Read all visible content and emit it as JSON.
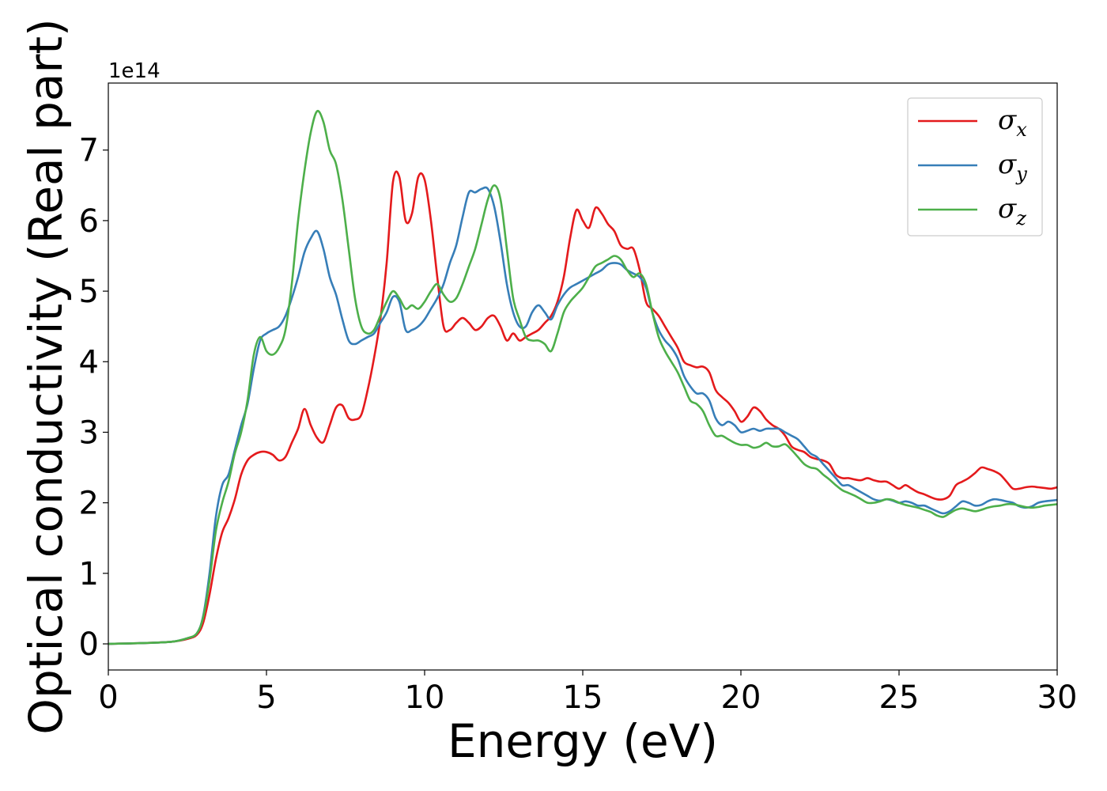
{
  "chart_data": {
    "type": "line",
    "title": "",
    "xlabel": "Energy (eV)",
    "ylabel": "Optical conductivity (Real part)",
    "y_offset_label": "1e14",
    "xlim": [
      0,
      30
    ],
    "ylim": [
      -0.37,
      7.95
    ],
    "y_scale_factor": 100000000000000.0,
    "xticks": [
      0,
      5,
      10,
      15,
      20,
      25,
      30
    ],
    "yticks": [
      0,
      1,
      2,
      3,
      4,
      5,
      6,
      7
    ],
    "grid": false,
    "legend_position": "top-right",
    "series": [
      {
        "name": "σ",
        "subscript": "x",
        "color": "#e41a1c",
        "x": [
          0,
          1,
          2,
          2.5,
          2.8,
          3.0,
          3.2,
          3.4,
          3.6,
          3.8,
          4.0,
          4.2,
          4.4,
          4.6,
          4.8,
          5.0,
          5.2,
          5.4,
          5.6,
          5.8,
          6.0,
          6.2,
          6.4,
          6.6,
          6.8,
          7.0,
          7.2,
          7.4,
          7.6,
          7.8,
          8.0,
          8.2,
          8.4,
          8.6,
          8.8,
          9.0,
          9.2,
          9.4,
          9.6,
          9.8,
          10.0,
          10.2,
          10.4,
          10.6,
          10.8,
          11.0,
          11.2,
          11.4,
          11.6,
          11.8,
          12.0,
          12.2,
          12.4,
          12.6,
          12.8,
          13.0,
          13.2,
          13.4,
          13.6,
          13.8,
          14.0,
          14.2,
          14.4,
          14.6,
          14.8,
          15.0,
          15.2,
          15.4,
          15.6,
          15.8,
          16.0,
          16.2,
          16.4,
          16.6,
          16.8,
          17.0,
          17.2,
          17.4,
          17.6,
          17.8,
          18.0,
          18.2,
          18.4,
          18.6,
          18.8,
          19.0,
          19.2,
          19.4,
          19.6,
          19.8,
          20.0,
          20.2,
          20.4,
          20.6,
          20.8,
          21.0,
          21.2,
          21.4,
          21.6,
          21.8,
          22.0,
          22.2,
          22.4,
          22.6,
          22.8,
          23.0,
          23.2,
          23.4,
          23.6,
          23.8,
          24.0,
          24.2,
          24.4,
          24.6,
          24.8,
          25.0,
          25.2,
          25.4,
          25.6,
          25.8,
          26.0,
          26.2,
          26.4,
          26.6,
          26.8,
          27.0,
          27.2,
          27.4,
          27.6,
          27.8,
          28.0,
          28.2,
          28.4,
          28.6,
          28.8,
          29.0,
          29.2,
          29.4,
          29.6,
          29.8,
          30.0
        ],
        "values": [
          0,
          0.01,
          0.03,
          0.07,
          0.13,
          0.3,
          0.7,
          1.2,
          1.58,
          1.78,
          2.05,
          2.4,
          2.6,
          2.68,
          2.72,
          2.72,
          2.68,
          2.6,
          2.65,
          2.85,
          3.05,
          3.33,
          3.1,
          2.92,
          2.86,
          3.1,
          3.35,
          3.38,
          3.2,
          3.18,
          3.25,
          3.6,
          4.05,
          4.6,
          5.4,
          6.55,
          6.62,
          6.0,
          6.1,
          6.62,
          6.58,
          6.0,
          5.2,
          4.5,
          4.45,
          4.55,
          4.62,
          4.55,
          4.45,
          4.5,
          4.62,
          4.65,
          4.5,
          4.3,
          4.4,
          4.3,
          4.35,
          4.4,
          4.45,
          4.55,
          4.65,
          4.85,
          5.2,
          5.75,
          6.15,
          6.0,
          5.9,
          6.18,
          6.1,
          5.95,
          5.85,
          5.65,
          5.6,
          5.6,
          5.3,
          4.85,
          4.75,
          4.65,
          4.5,
          4.35,
          4.2,
          4.0,
          3.95,
          3.92,
          3.93,
          3.85,
          3.6,
          3.5,
          3.42,
          3.3,
          3.15,
          3.22,
          3.35,
          3.3,
          3.18,
          3.1,
          3.05,
          2.95,
          2.8,
          2.75,
          2.72,
          2.65,
          2.62,
          2.6,
          2.55,
          2.4,
          2.35,
          2.35,
          2.33,
          2.32,
          2.35,
          2.32,
          2.3,
          2.3,
          2.25,
          2.2,
          2.25,
          2.2,
          2.15,
          2.12,
          2.08,
          2.05,
          2.05,
          2.1,
          2.25,
          2.3,
          2.35,
          2.42,
          2.5,
          2.48,
          2.45,
          2.4,
          2.3,
          2.2,
          2.2,
          2.22,
          2.23,
          2.22,
          2.21,
          2.2,
          2.22
        ],
        "values_note": ""
      },
      {
        "name": "σ",
        "subscript": "y",
        "color": "#377eb8",
        "x": [
          0,
          1,
          2,
          2.5,
          2.8,
          3.0,
          3.2,
          3.4,
          3.6,
          3.8,
          4.0,
          4.2,
          4.4,
          4.6,
          4.8,
          5.0,
          5.2,
          5.4,
          5.6,
          5.8,
          6.0,
          6.2,
          6.4,
          6.6,
          6.8,
          7.0,
          7.2,
          7.4,
          7.6,
          7.8,
          8.0,
          8.2,
          8.4,
          8.6,
          8.8,
          9.0,
          9.2,
          9.4,
          9.6,
          9.8,
          10.0,
          10.2,
          10.4,
          10.6,
          10.8,
          11.0,
          11.2,
          11.4,
          11.6,
          11.8,
          12.0,
          12.2,
          12.4,
          12.6,
          12.8,
          13.0,
          13.2,
          13.4,
          13.6,
          13.8,
          14.0,
          14.2,
          14.4,
          14.6,
          14.8,
          15.0,
          15.2,
          15.4,
          15.6,
          15.8,
          16.0,
          16.2,
          16.4,
          16.6,
          16.8,
          17.0,
          17.2,
          17.4,
          17.6,
          17.8,
          18.0,
          18.2,
          18.4,
          18.6,
          18.8,
          19.0,
          19.2,
          19.4,
          19.6,
          19.8,
          20.0,
          20.2,
          20.4,
          20.6,
          20.8,
          21.0,
          21.2,
          21.4,
          21.6,
          21.8,
          22.0,
          22.2,
          22.4,
          22.6,
          22.8,
          23.0,
          23.2,
          23.4,
          23.6,
          23.8,
          24.0,
          24.2,
          24.4,
          24.6,
          24.8,
          25.0,
          25.2,
          25.4,
          25.6,
          25.8,
          26.0,
          26.2,
          26.4,
          26.6,
          26.8,
          27.0,
          27.2,
          27.4,
          27.6,
          27.8,
          28.0,
          28.2,
          28.4,
          28.6,
          28.8,
          29.0,
          29.2,
          29.4,
          29.6,
          29.8,
          30.0
        ],
        "values": [
          0,
          0.01,
          0.03,
          0.08,
          0.15,
          0.4,
          1.0,
          1.8,
          2.25,
          2.4,
          2.75,
          3.1,
          3.4,
          3.9,
          4.3,
          4.4,
          4.45,
          4.5,
          4.65,
          4.9,
          5.2,
          5.55,
          5.75,
          5.85,
          5.6,
          5.2,
          4.95,
          4.6,
          4.3,
          4.25,
          4.3,
          4.35,
          4.4,
          4.55,
          4.7,
          4.92,
          4.85,
          4.45,
          4.45,
          4.5,
          4.6,
          4.75,
          4.9,
          5.1,
          5.4,
          5.65,
          6.05,
          6.4,
          6.4,
          6.45,
          6.45,
          6.2,
          5.7,
          5.1,
          4.7,
          4.5,
          4.5,
          4.7,
          4.8,
          4.7,
          4.6,
          4.8,
          4.95,
          5.05,
          5.1,
          5.15,
          5.2,
          5.25,
          5.3,
          5.38,
          5.4,
          5.38,
          5.3,
          5.25,
          5.2,
          5.05,
          4.7,
          4.45,
          4.3,
          4.2,
          4.05,
          3.8,
          3.65,
          3.55,
          3.55,
          3.45,
          3.2,
          3.1,
          3.15,
          3.1,
          3.0,
          3.02,
          3.05,
          3.02,
          3.05,
          3.05,
          3.05,
          3.0,
          2.95,
          2.9,
          2.8,
          2.7,
          2.65,
          2.55,
          2.45,
          2.35,
          2.25,
          2.25,
          2.2,
          2.15,
          2.1,
          2.05,
          2.03,
          2.05,
          2.03,
          2.0,
          2.02,
          2.0,
          1.96,
          1.96,
          1.92,
          1.88,
          1.85,
          1.88,
          1.95,
          2.02,
          2.0,
          1.96,
          1.97,
          2.02,
          2.05,
          2.04,
          2.02,
          2.0,
          1.95,
          1.93,
          1.95,
          2.0,
          2.02,
          2.03,
          2.04
        ],
        "values_note": ""
      },
      {
        "name": "σ",
        "subscript": "z",
        "color": "#4daf4a",
        "x": [
          0,
          1,
          2,
          2.5,
          2.8,
          3.0,
          3.2,
          3.4,
          3.6,
          3.8,
          4.0,
          4.2,
          4.4,
          4.6,
          4.8,
          5.0,
          5.2,
          5.4,
          5.6,
          5.8,
          6.0,
          6.2,
          6.4,
          6.6,
          6.8,
          7.0,
          7.2,
          7.4,
          7.6,
          7.8,
          8.0,
          8.2,
          8.4,
          8.6,
          8.8,
          9.0,
          9.2,
          9.4,
          9.6,
          9.8,
          10.0,
          10.2,
          10.4,
          10.6,
          10.8,
          11.0,
          11.2,
          11.4,
          11.6,
          11.8,
          12.0,
          12.2,
          12.4,
          12.6,
          12.8,
          13.0,
          13.2,
          13.4,
          13.6,
          13.8,
          14.0,
          14.2,
          14.4,
          14.6,
          14.8,
          15.0,
          15.2,
          15.4,
          15.6,
          15.8,
          16.0,
          16.2,
          16.4,
          16.6,
          16.8,
          17.0,
          17.2,
          17.4,
          17.6,
          17.8,
          18.0,
          18.2,
          18.4,
          18.6,
          18.8,
          19.0,
          19.2,
          19.4,
          19.6,
          19.8,
          20.0,
          20.2,
          20.4,
          20.6,
          20.8,
          21.0,
          21.2,
          21.4,
          21.6,
          21.8,
          22.0,
          22.2,
          22.4,
          22.6,
          22.8,
          23.0,
          23.2,
          23.4,
          23.6,
          23.8,
          24.0,
          24.2,
          24.4,
          24.6,
          24.8,
          25.0,
          25.2,
          25.4,
          25.6,
          25.8,
          26.0,
          26.2,
          26.4,
          26.6,
          26.8,
          27.0,
          27.2,
          27.4,
          27.6,
          27.8,
          28.0,
          28.2,
          28.4,
          28.6,
          28.8,
          29.0,
          29.2,
          29.4,
          29.6,
          29.8,
          30.0
        ],
        "values": [
          0,
          0.01,
          0.03,
          0.08,
          0.15,
          0.38,
          0.9,
          1.6,
          2.0,
          2.3,
          2.7,
          3.0,
          3.45,
          4.1,
          4.35,
          4.15,
          4.1,
          4.2,
          4.45,
          5.1,
          6.0,
          6.7,
          7.25,
          7.55,
          7.4,
          7.0,
          6.8,
          6.3,
          5.6,
          4.9,
          4.5,
          4.4,
          4.45,
          4.65,
          4.85,
          5.0,
          4.9,
          4.75,
          4.8,
          4.75,
          4.85,
          5.0,
          5.1,
          4.95,
          4.85,
          4.9,
          5.1,
          5.35,
          5.6,
          5.95,
          6.3,
          6.5,
          6.3,
          5.6,
          4.9,
          4.6,
          4.35,
          4.3,
          4.3,
          4.25,
          4.15,
          4.4,
          4.7,
          4.85,
          4.95,
          5.05,
          5.2,
          5.35,
          5.4,
          5.45,
          5.5,
          5.45,
          5.3,
          5.2,
          5.25,
          5.1,
          4.7,
          4.35,
          4.15,
          4.0,
          3.85,
          3.65,
          3.45,
          3.4,
          3.3,
          3.1,
          2.95,
          2.95,
          2.9,
          2.85,
          2.82,
          2.82,
          2.78,
          2.8,
          2.85,
          2.8,
          2.8,
          2.83,
          2.75,
          2.65,
          2.55,
          2.5,
          2.48,
          2.4,
          2.33,
          2.25,
          2.18,
          2.14,
          2.1,
          2.05,
          2.0,
          2.0,
          2.02,
          2.05,
          2.04,
          2.0,
          1.97,
          1.95,
          1.93,
          1.9,
          1.87,
          1.82,
          1.8,
          1.85,
          1.9,
          1.92,
          1.9,
          1.88,
          1.9,
          1.93,
          1.95,
          1.96,
          1.98,
          1.98,
          1.96,
          1.94,
          1.93,
          1.94,
          1.96,
          1.97,
          1.98
        ],
        "values_note": ""
      }
    ]
  }
}
